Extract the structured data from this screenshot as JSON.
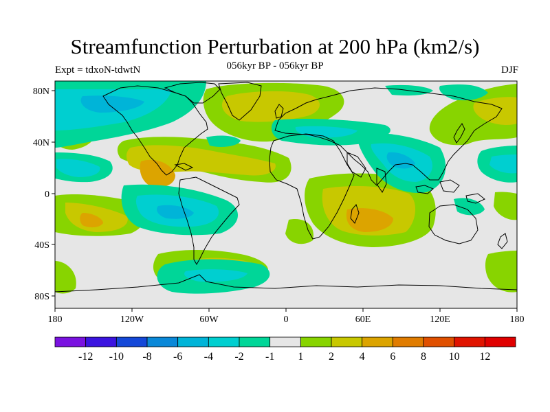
{
  "header": {
    "title": "Streamfunction Perturbation at 200 hPa (km2/s)",
    "subtitle": "056kyr BP - 056kyr BP",
    "left_label": "Expt = tdxoN-tdwtN",
    "right_label": "DJF"
  },
  "axes": {
    "lat_labels": [
      "80N",
      "40N",
      "0",
      "40S",
      "80S"
    ],
    "lon_labels": [
      "180",
      "120W",
      "60W",
      "0",
      "60E",
      "120E",
      "180"
    ]
  },
  "colorbar": {
    "labels": [
      "-12",
      "-10",
      "-8",
      "-6",
      "-4",
      "-2",
      "-1",
      "1",
      "2",
      "4",
      "6",
      "8",
      "10",
      "12"
    ],
    "colors": [
      "#7a12e0",
      "#3b14e0",
      "#1448d8",
      "#0a88d8",
      "#00b4d8",
      "#00cfd0",
      "#00d698",
      "#e6e6e6",
      "#88d400",
      "#c8c800",
      "#dca400",
      "#e07c00",
      "#e05000",
      "#e01400",
      "#e00000"
    ]
  },
  "colors": {
    "neutral": "#e6e6e6",
    "coastline": "#000000"
  }
}
